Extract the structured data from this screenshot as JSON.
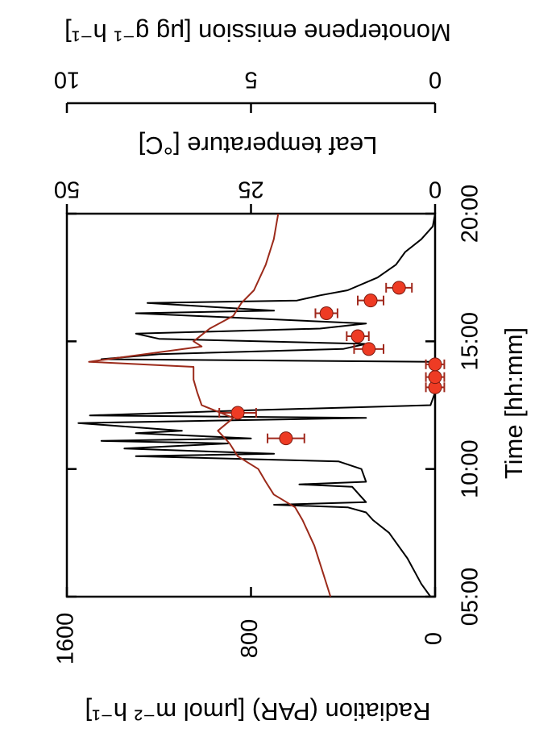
{
  "chart_data": {
    "type": "line",
    "x_label": "Time [hh:mm]",
    "y_label": "Radiation (PAR) [μmol m⁻² h⁻¹]",
    "y2_label": "Leaf temperature [°C]",
    "y3_label": "Monoterpene emission [μg g⁻¹ h⁻¹]",
    "xlim": [
      5,
      20
    ],
    "xticks": [
      {
        "value": 5,
        "label": "05:00"
      },
      {
        "value": 10,
        "label": "10:00"
      },
      {
        "value": 15,
        "label": "15:00"
      },
      {
        "value": 20,
        "label": "20:00"
      }
    ],
    "ylim": [
      0,
      1600
    ],
    "yticks": [
      0,
      800,
      1600
    ],
    "y2lim": [
      0,
      50
    ],
    "y2ticks": [
      0,
      25,
      50
    ],
    "y3lim": [
      0,
      10
    ],
    "y3ticks": [
      0,
      5,
      10
    ],
    "series": [
      {
        "color": "#000000",
        "axis": "y",
        "x": [
          5,
          5.5,
          6,
          6.5,
          7,
          7.5,
          8,
          8.3,
          8.5,
          8.6,
          8.7,
          9,
          9.3,
          9.4,
          9.5,
          10,
          10.3,
          10.5,
          10.6,
          10.8,
          11,
          11.1,
          11.2,
          11.4,
          11.5,
          11.8,
          12,
          12.1,
          12.3,
          12.5,
          13,
          14,
          14.2,
          14.3,
          14.5,
          14.7,
          14.9,
          15.1,
          15.3,
          15.5,
          15.7,
          16.1,
          16.2,
          16.5,
          16.6,
          16.8,
          17,
          17.5,
          18,
          18.5,
          19,
          19.5,
          20
        ],
        "values": [
          20,
          60,
          90,
          120,
          160,
          200,
          270,
          300,
          380,
          700,
          300,
          330,
          360,
          590,
          300,
          320,
          420,
          1300,
          700,
          1350,
          900,
          1450,
          800,
          1300,
          1100,
          1550,
          300,
          1500,
          800,
          20,
          0,
          0,
          10,
          1450,
          1200,
          400,
          300,
          1200,
          1300,
          500,
          300,
          1300,
          700,
          1250,
          600,
          500,
          380,
          250,
          170,
          130,
          60,
          10,
          0
        ]
      },
      {
        "color": "#9b2a1a",
        "axis": "y2",
        "x": [
          5,
          6,
          7,
          8,
          8.5,
          9,
          9.5,
          10,
          10.5,
          11,
          11.5,
          12,
          12.5,
          13,
          13.5,
          14,
          14.2,
          14.5,
          14.8,
          15,
          15.5,
          16,
          16.5,
          17,
          18,
          19,
          20
        ],
        "values": [
          14.2,
          15.3,
          16.4,
          18,
          19,
          21.9,
          23,
          24,
          26.8,
          27.9,
          29.5,
          27.4,
          31.7,
          32.3,
          32.8,
          32.8,
          47,
          39.4,
          31.7,
          32.8,
          30.6,
          27.4,
          26.3,
          24.6,
          23,
          21.9,
          21.3
        ]
      },
      {
        "color": "#ee3b24",
        "axis": "y3",
        "x": [
          11.2,
          12.2,
          13.2,
          13.6,
          14.1,
          14.7,
          15.2,
          16.1,
          16.6,
          17.1
        ],
        "values": [
          4.05,
          5.36,
          0,
          0,
          0,
          1.8,
          2.1,
          2.95,
          1.75,
          0.98
        ],
        "errors": [
          0.5,
          0.5,
          0.25,
          0.25,
          0.25,
          0.4,
          0.3,
          0.3,
          0.35,
          0.35
        ]
      }
    ]
  }
}
